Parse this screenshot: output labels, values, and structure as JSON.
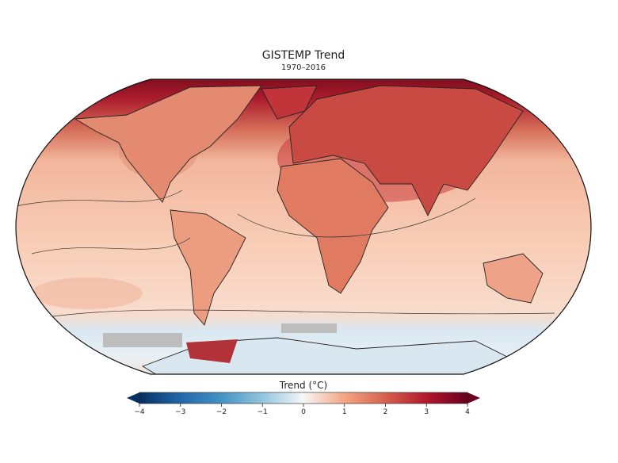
{
  "title": "GISTEMP Trend",
  "subtitle": "1970–2016",
  "colorbar": {
    "label": "Trend (°C)",
    "lim": [
      -4,
      4
    ],
    "ticks": [
      {
        "value": -4,
        "label": "−4"
      },
      {
        "value": -3,
        "label": "−3"
      },
      {
        "value": -2,
        "label": "−2"
      },
      {
        "value": -1,
        "label": "−1"
      },
      0,
      1,
      2,
      3,
      4
    ]
  }
}
